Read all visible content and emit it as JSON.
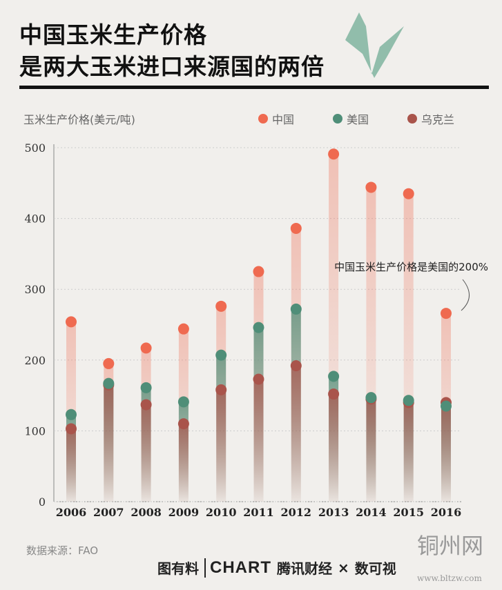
{
  "title": {
    "line1": "中国玉米生产价格",
    "line2": "是两大玉米进口来源国的两倍"
  },
  "source": "数据来源：FAO",
  "footer": {
    "brand1": "图有料",
    "brand2": "CHART",
    "brand3": "腾讯财经",
    "sep": "×",
    "brand4": "数可视"
  },
  "watermark": {
    "name": "铜州网",
    "url": "www.bltzw.com"
  },
  "chart_data": {
    "type": "scatter",
    "ylabel": "玉米生产价格(美元/吨)",
    "categories": [
      "2006",
      "2007",
      "2008",
      "2009",
      "2010",
      "2011",
      "2012",
      "2013",
      "2014",
      "2015",
      "2016"
    ],
    "ylim": [
      0,
      500
    ],
    "yticks": [
      0,
      100,
      200,
      300,
      400,
      500
    ],
    "grid": false,
    "legend": "top-right",
    "series": [
      {
        "name": "中国",
        "color": "#ef6a50",
        "values": [
          254,
          195,
          217,
          244,
          276,
          325,
          386,
          491,
          444,
          435,
          266
        ]
      },
      {
        "name": "美国",
        "color": "#4f8e78",
        "values": [
          123,
          167,
          161,
          141,
          207,
          246,
          272,
          177,
          147,
          143,
          135
        ]
      },
      {
        "name": "乌克兰",
        "color": "#a9544b",
        "values": [
          103,
          165,
          137,
          110,
          158,
          173,
          192,
          152,
          145,
          140,
          140
        ]
      }
    ],
    "annotation": "中国玉米生产价格是美国的200%"
  }
}
